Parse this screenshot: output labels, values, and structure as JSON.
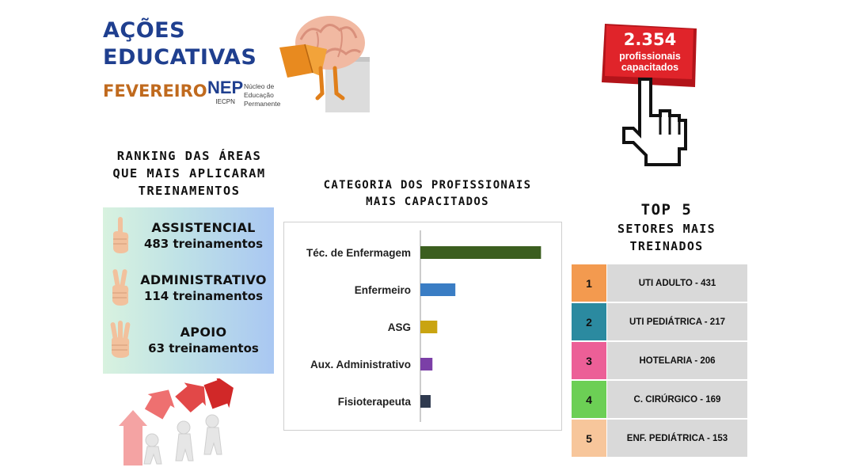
{
  "header": {
    "title_line1": "AÇÕES",
    "title_line2": "EDUCATIVAS",
    "month": "FEVEREIRO",
    "logo_mark": "NEP",
    "logo_sub": "IECPN",
    "logo_desc1": "Núcleo de",
    "logo_desc2": "Educação",
    "logo_desc3": "Permanente"
  },
  "counter": {
    "number": "2.354",
    "label_line1": "profissionais",
    "label_line2": "capacitados"
  },
  "ranking": {
    "title_line1": "RANKING DAS ÁREAS",
    "title_line2": "QUE MAIS APLICARAM",
    "title_line3": "TREINAMENTOS",
    "items": [
      {
        "name": "ASSISTENCIAL",
        "count": "483 treinamentos"
      },
      {
        "name": "ADMINISTRATIVO",
        "count": "114 treinamentos"
      },
      {
        "name": "APOIO",
        "count": "63 treinamentos"
      }
    ]
  },
  "chart_title": {
    "line1": "CATEGORIA DOS PROFISSIONAIS",
    "line2": "MAIS CAPACITADOS"
  },
  "chart_data": {
    "type": "bar",
    "orientation": "horizontal",
    "categories": [
      "Téc. de Enfermagem",
      "Enfermeiro",
      "ASG",
      "Aux. Administrativo",
      "Fisioterapeuta"
    ],
    "values": [
      1000,
      290,
      140,
      100,
      85
    ],
    "colors": [
      "#3b5e1f",
      "#3a7dc4",
      "#c9a411",
      "#7b3fa7",
      "#2f3a4f"
    ],
    "xlim": [
      0,
      1050
    ],
    "grid": false,
    "title": "",
    "xlabel": "",
    "ylabel": ""
  },
  "top5": {
    "title": "TOP 5",
    "subtitle_line1": "SETORES MAIS",
    "subtitle_line2": "TREINADOS",
    "rows": [
      {
        "rank": "1",
        "label": "UTI ADULTO - 431",
        "color": "#f39a4f"
      },
      {
        "rank": "2",
        "label": "UTI PEDIÁTRICA - 217",
        "color": "#2b8aa0"
      },
      {
        "rank": "3",
        "label": "HOTELARIA - 206",
        "color": "#ec5f97"
      },
      {
        "rank": "4",
        "label": "C. CIRÚRGICO - 169",
        "color": "#6ccf55"
      },
      {
        "rank": "5",
        "label": "ENF. PEDIÁTRICA - 153",
        "color": "#f7c69b"
      }
    ]
  }
}
